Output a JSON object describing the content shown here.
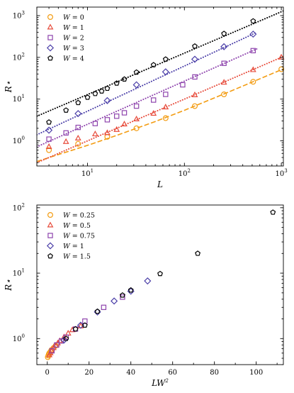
{
  "chart_data": [
    {
      "type": "scatter",
      "xscale": "log",
      "yscale": "log",
      "xlim": [
        3,
        1050
      ],
      "ylim": [
        0.25,
        1600
      ],
      "xlabel": "L",
      "ylabel": "R⋆",
      "xticks": [
        {
          "value": 10,
          "base": "10",
          "exp": "1"
        },
        {
          "value": 100,
          "base": "10",
          "exp": "2"
        },
        {
          "value": 1000,
          "base": "10",
          "exp": "3"
        }
      ],
      "yticks": [
        {
          "value": 1,
          "base": "10",
          "exp": "0"
        },
        {
          "value": 10,
          "base": "10",
          "exp": "1"
        },
        {
          "value": 100,
          "base": "10",
          "exp": "2"
        },
        {
          "value": 1000,
          "base": "10",
          "exp": "3"
        }
      ],
      "legend_position": "top-left",
      "series": [
        {
          "name": "W = 0",
          "symbol": "W",
          "value": "0",
          "marker": "circle",
          "color": "#F39C12",
          "x": [
            4,
            8,
            16,
            32,
            64,
            128,
            256,
            512,
            1000
          ],
          "y": [
            0.6,
            0.85,
            1.25,
            2.0,
            3.5,
            6.8,
            13.0,
            26.0,
            52.0
          ],
          "fit": {
            "style": "dashed",
            "points": [
              [
                3,
                0.32
              ],
              [
                5,
                0.47
              ],
              [
                10,
                0.78
              ],
              [
                20,
                1.35
              ],
              [
                50,
                2.9
              ],
              [
                100,
                5.4
              ],
              [
                300,
                15.5
              ],
              [
                1050,
                53
              ]
            ]
          }
        },
        {
          "name": "W = 1",
          "symbol": "W",
          "value": "1",
          "marker": "triangle",
          "color": "#E74C3C",
          "x": [
            4,
            6,
            8,
            12,
            16,
            20,
            24,
            32,
            48,
            64,
            128,
            256,
            512,
            1000
          ],
          "y": [
            0.72,
            0.95,
            1.15,
            1.45,
            1.55,
            1.85,
            2.5,
            3.3,
            4.5,
            6.4,
            12.5,
            25.0,
            50.0,
            100.0
          ],
          "fit": {
            "style": "dotted",
            "points": [
              [
                3,
                0.3
              ],
              [
                1050,
                105
              ]
            ]
          }
        },
        {
          "name": "W = 2",
          "symbol": "W",
          "value": "2",
          "marker": "square",
          "color": "#8E44AD",
          "x": [
            4,
            6,
            8,
            12,
            16,
            20,
            24,
            32,
            48,
            64,
            96,
            128,
            256,
            512
          ],
          "y": [
            1.1,
            1.55,
            2.1,
            2.6,
            3.2,
            3.9,
            4.7,
            6.8,
            9.5,
            13.0,
            22.0,
            34.0,
            72.0,
            145.0
          ],
          "fit": {
            "style": "dotted",
            "points": [
              [
                3,
                0.72
              ],
              [
                560,
                160
              ]
            ]
          }
        },
        {
          "name": "W = 3",
          "symbol": "W",
          "value": "3",
          "marker": "diamond",
          "color": "#4B3FA8",
          "x": [
            4,
            8,
            16,
            32,
            64,
            128,
            256,
            512
          ],
          "y": [
            1.8,
            4.5,
            9.2,
            22.0,
            45.0,
            90.0,
            180.0,
            360.0
          ],
          "fit": {
            "style": "dotted",
            "points": [
              [
                3,
                1.4
              ],
              [
                560,
                400
              ]
            ]
          }
        },
        {
          "name": "W = 4",
          "symbol": "W",
          "value": "4",
          "marker": "pentagon",
          "color": "#000000",
          "x": [
            4,
            6,
            8,
            10,
            12,
            14,
            16,
            20,
            24,
            32,
            48,
            64,
            128,
            256,
            512
          ],
          "y": [
            2.8,
            5.4,
            8.2,
            11.0,
            13.5,
            15.5,
            18.0,
            24.0,
            30.0,
            44.0,
            66.0,
            90.0,
            185.0,
            370.0,
            740.0
          ],
          "fit": {
            "style": "dotted",
            "points": [
              [
                3,
                3.9
              ],
              [
                1050,
                1300
              ]
            ]
          }
        }
      ]
    },
    {
      "type": "scatter",
      "xscale": "linear",
      "yscale": "log",
      "xlim": [
        -5,
        113
      ],
      "ylim": [
        0.4,
        110
      ],
      "xlabel": "LW",
      "xlabel_sup": "2",
      "ylabel": "R⋆",
      "xticks": [
        {
          "value": 0,
          "label": "0"
        },
        {
          "value": 20,
          "label": "20"
        },
        {
          "value": 40,
          "label": "40"
        },
        {
          "value": 60,
          "label": "60"
        },
        {
          "value": 80,
          "label": "80"
        },
        {
          "value": 100,
          "label": "100"
        }
      ],
      "yticks": [
        {
          "value": 1,
          "base": "10",
          "exp": "0"
        },
        {
          "value": 10,
          "base": "10",
          "exp": "1"
        },
        {
          "value": 100,
          "base": "10",
          "exp": "2"
        }
      ],
      "legend_position": "top-left",
      "series": [
        {
          "name": "W = 0.25",
          "symbol": "W",
          "value": "0.25",
          "marker": "circle",
          "color": "#F39C12",
          "x": [
            0.25,
            0.5,
            0.75,
            1.0,
            1.5,
            2.0,
            3.0,
            4.0
          ],
          "y": [
            0.52,
            0.55,
            0.58,
            0.6,
            0.63,
            0.67,
            0.72,
            0.78
          ]
        },
        {
          "name": "W = 0.5",
          "symbol": "W",
          "value": "0.5",
          "marker": "triangle",
          "color": "#E74C3C",
          "x": [
            1,
            1.5,
            2,
            3,
            4,
            5,
            6,
            8,
            10,
            12,
            16
          ],
          "y": [
            0.56,
            0.6,
            0.65,
            0.72,
            0.78,
            0.85,
            0.92,
            1.05,
            1.2,
            1.35,
            1.55
          ]
        },
        {
          "name": "W = 0.75",
          "symbol": "W",
          "value": "0.75",
          "marker": "square",
          "color": "#8E44AD",
          "x": [
            2.25,
            4.5,
            6.75,
            9,
            13.5,
            18,
            27,
            36
          ],
          "y": [
            0.65,
            0.8,
            0.92,
            1.05,
            1.4,
            1.85,
            3.0,
            4.3
          ]
        },
        {
          "name": "W = 1",
          "symbol": "W",
          "value": "1",
          "marker": "diamond",
          "color": "#4B3FA8",
          "x": [
            8,
            16,
            24,
            32,
            40,
            48
          ],
          "y": [
            0.95,
            1.6,
            2.55,
            3.75,
            5.3,
            7.6
          ]
        },
        {
          "name": "W = 1.5",
          "symbol": "W",
          "value": "1.5",
          "marker": "pentagon",
          "color": "#000000",
          "x": [
            9,
            13.5,
            18,
            24,
            36,
            40,
            54,
            72,
            108
          ],
          "y": [
            1.0,
            1.4,
            1.6,
            2.6,
            4.6,
            5.5,
            9.8,
            20.0,
            85.0
          ]
        }
      ]
    }
  ]
}
